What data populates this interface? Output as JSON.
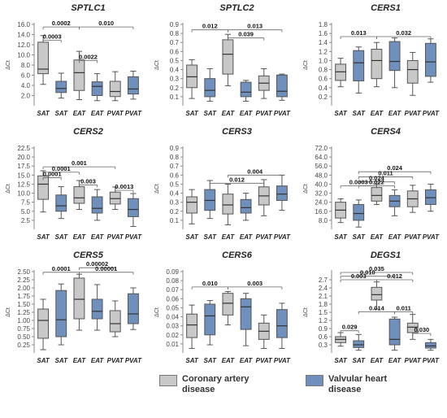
{
  "colors": {
    "coronary": "#c8c8c8",
    "valvular": "#6f8fbd",
    "stroke": "#555555",
    "text": "#222222"
  },
  "legend": {
    "coronary_label": "Coronary artery disease",
    "valvular_label": "Valvular heart disease"
  },
  "chart_data": [
    {
      "type": "box",
      "title": "SPTLC1",
      "ylabel": "ΔCt",
      "ylim": [
        0,
        16
      ],
      "yticks": [
        "2.0",
        "4.0",
        "6.0",
        "8.0",
        "10.0",
        "12.0",
        "14.0",
        "16.0"
      ],
      "ytick_values": [
        2,
        4,
        6,
        8,
        10,
        12,
        14,
        16
      ],
      "categories": [
        "SAT",
        "SAT",
        "EAT",
        "EAT",
        "PVAT",
        "PVAT"
      ],
      "groups": [
        "coronary",
        "valvular",
        "coronary",
        "valvular",
        "coronary",
        "valvular"
      ],
      "boxes": [
        {
          "min": 4.2,
          "q1": 6.3,
          "median": 7.2,
          "q3": 12.5,
          "max": 13.8
        },
        {
          "min": 1.5,
          "q1": 2.6,
          "median": 3.4,
          "q3": 4.8,
          "max": 6.4
        },
        {
          "min": 1.2,
          "q1": 3.0,
          "median": 6.5,
          "q3": 9.0,
          "max": 10.7
        },
        {
          "min": 1.0,
          "q1": 2.0,
          "median": 3.8,
          "q3": 4.7,
          "max": 6.3
        },
        {
          "min": 1.0,
          "q1": 1.8,
          "median": 2.8,
          "q3": 4.8,
          "max": 6.7
        },
        {
          "min": 1.3,
          "q1": 2.3,
          "median": 3.3,
          "q3": 5.7,
          "max": 6.8
        }
      ],
      "annotations": [
        {
          "label": "0.0002",
          "from": 0,
          "to": 2,
          "y": 15.5
        },
        {
          "label": "0.010",
          "from": 2,
          "to": 5,
          "y": 15.5
        },
        {
          "label": "0.0003",
          "from": 0,
          "to": 1,
          "y": 12.9
        },
        {
          "label": "0.0022",
          "from": 2,
          "to": 3,
          "y": 8.9
        }
      ]
    },
    {
      "type": "box",
      "title": "SPTLC2",
      "ylabel": "ΔCt",
      "ylim": [
        0,
        0.9
      ],
      "yticks": [
        "0.1",
        "0.2",
        "0.3",
        "0.4",
        "0.5",
        "0.6",
        "0.7",
        "0.8",
        "0.9"
      ],
      "ytick_values": [
        0.1,
        0.2,
        0.3,
        0.4,
        0.5,
        0.6,
        0.7,
        0.8,
        0.9
      ],
      "categories": [
        "SAT",
        "SAT",
        "EAT",
        "EAT",
        "PVAT",
        "PVAT"
      ],
      "groups": [
        "coronary",
        "valvular",
        "coronary",
        "valvular",
        "coronary",
        "valvular"
      ],
      "boxes": [
        {
          "min": 0.08,
          "q1": 0.2,
          "median": 0.32,
          "q3": 0.45,
          "max": 0.51
        },
        {
          "min": 0.05,
          "q1": 0.1,
          "median": 0.17,
          "q3": 0.3,
          "max": 0.41
        },
        {
          "min": 0.22,
          "q1": 0.35,
          "median": 0.57,
          "q3": 0.73,
          "max": 0.79
        },
        {
          "min": 0.05,
          "q1": 0.1,
          "median": 0.15,
          "q3": 0.26,
          "max": 0.28
        },
        {
          "min": 0.08,
          "q1": 0.17,
          "median": 0.25,
          "q3": 0.33,
          "max": 0.41
        },
        {
          "min": 0.06,
          "q1": 0.1,
          "median": 0.16,
          "q3": 0.34,
          "max": 0.35
        }
      ],
      "annotations": [
        {
          "label": "0.012",
          "from": 0,
          "to": 2,
          "y": 0.84
        },
        {
          "label": "0.013",
          "from": 2,
          "to": 5,
          "y": 0.84
        },
        {
          "label": "0.039",
          "from": 2,
          "to": 4,
          "y": 0.75
        }
      ]
    },
    {
      "type": "box",
      "title": "CERS1",
      "ylabel": "ΔCt",
      "ylim": [
        0,
        1.8
      ],
      "yticks": [
        "0.2",
        "0.4",
        "0.6",
        "0.8",
        "1.0",
        "1.2",
        "1.4",
        "1.6",
        "1.8"
      ],
      "ytick_values": [
        0.2,
        0.4,
        0.6,
        0.8,
        1.0,
        1.2,
        1.4,
        1.6,
        1.8
      ],
      "categories": [
        "SAT",
        "SAT",
        "EAT",
        "EAT",
        "PVAT",
        "PVAT"
      ],
      "groups": [
        "coronary",
        "valvular",
        "coronary",
        "valvular",
        "coronary",
        "valvular"
      ],
      "boxes": [
        {
          "min": 0.42,
          "q1": 0.56,
          "median": 0.75,
          "q3": 0.92,
          "max": 1.05
        },
        {
          "min": 0.28,
          "q1": 0.55,
          "median": 0.95,
          "q3": 1.22,
          "max": 1.3
        },
        {
          "min": 0.42,
          "q1": 0.6,
          "median": 1.0,
          "q3": 1.25,
          "max": 1.4
        },
        {
          "min": 0.4,
          "q1": 0.78,
          "median": 0.98,
          "q3": 1.42,
          "max": 1.5
        },
        {
          "min": 0.23,
          "q1": 0.5,
          "median": 0.8,
          "q3": 1.0,
          "max": 1.18
        },
        {
          "min": 0.52,
          "q1": 0.65,
          "median": 0.97,
          "q3": 1.38,
          "max": 1.48
        }
      ],
      "annotations": [
        {
          "label": "0.013",
          "from": 0,
          "to": 2,
          "y": 1.53
        },
        {
          "label": "0.032",
          "from": 2,
          "to": 5,
          "y": 1.53
        }
      ]
    },
    {
      "type": "box",
      "title": "CERS2",
      "ylabel": "ΔCt",
      "ylim": [
        0,
        22.5
      ],
      "yticks": [
        "2.5",
        "5.0",
        "7.5",
        "10.0",
        "12.5",
        "15.0",
        "17.5",
        "20.0",
        "22.5"
      ],
      "ytick_values": [
        2.5,
        5,
        7.5,
        10,
        12.5,
        15,
        17.5,
        20,
        22.5
      ],
      "categories": [
        "SAT",
        "SAT",
        "EAT",
        "EAT",
        "PVAT",
        "PVAT"
      ],
      "groups": [
        "coronary",
        "valvular",
        "coronary",
        "valvular",
        "coronary",
        "valvular"
      ],
      "boxes": [
        {
          "min": 4.8,
          "q1": 8.3,
          "median": 12.5,
          "q3": 14.8,
          "max": 16.2
        },
        {
          "min": 3.0,
          "q1": 5.0,
          "median": 6.5,
          "q3": 9.5,
          "max": 11.8
        },
        {
          "min": 5.5,
          "q1": 7.2,
          "median": 8.7,
          "q3": 11.8,
          "max": 13.5
        },
        {
          "min": 2.5,
          "q1": 4.5,
          "median": 5.8,
          "q3": 9.0,
          "max": 11.0
        },
        {
          "min": 5.5,
          "q1": 7.0,
          "median": 8.5,
          "q3": 10.3,
          "max": 11.7
        },
        {
          "min": 0.8,
          "q1": 3.5,
          "median": 5.5,
          "q3": 8.5,
          "max": 9.9
        }
      ],
      "annotations": [
        {
          "label": "0.001",
          "from": 0,
          "to": 4,
          "y": 17.3
        },
        {
          "label": "0.0001",
          "from": 0,
          "to": 2,
          "y": 15.8
        },
        {
          "label": "0.0001",
          "from": 0,
          "to": 1,
          "y": 14.3
        },
        {
          "label": "0.003",
          "from": 2,
          "to": 3,
          "y": 12.3
        },
        {
          "label": "0.0013",
          "from": 4,
          "to": 5,
          "y": 10.8
        }
      ]
    },
    {
      "type": "box",
      "title": "CERS3",
      "ylabel": "ΔCt",
      "ylim": [
        0,
        0.9
      ],
      "yticks": [
        "0.1",
        "0.2",
        "0.3",
        "0.4",
        "0.5",
        "0.6",
        "0.7",
        "0.8",
        "0.9"
      ],
      "ytick_values": [
        0.1,
        0.2,
        0.3,
        0.4,
        0.5,
        0.6,
        0.7,
        0.8,
        0.9
      ],
      "categories": [
        "SAT",
        "SAT",
        "EAT",
        "EAT",
        "PVAT",
        "PVAT"
      ],
      "groups": [
        "coronary",
        "valvular",
        "coronary",
        "valvular",
        "coronary",
        "valvular"
      ],
      "boxes": [
        {
          "min": 0.06,
          "q1": 0.18,
          "median": 0.3,
          "q3": 0.36,
          "max": 0.44
        },
        {
          "min": 0.12,
          "q1": 0.21,
          "median": 0.32,
          "q3": 0.44,
          "max": 0.54
        },
        {
          "min": 0.05,
          "q1": 0.17,
          "median": 0.27,
          "q3": 0.39,
          "max": 0.5
        },
        {
          "min": 0.1,
          "q1": 0.18,
          "median": 0.24,
          "q3": 0.33,
          "max": 0.4
        },
        {
          "min": 0.15,
          "q1": 0.27,
          "median": 0.37,
          "q3": 0.47,
          "max": 0.55
        },
        {
          "min": 0.21,
          "q1": 0.32,
          "median": 0.39,
          "q3": 0.48,
          "max": 0.6
        }
      ],
      "annotations": [
        {
          "label": "0.004",
          "from": 2,
          "to": 5,
          "y": 0.6
        },
        {
          "label": "0.012",
          "from": 1,
          "to": 4,
          "y": 0.51
        }
      ]
    },
    {
      "type": "box",
      "title": "CERS4",
      "ylabel": "ΔCt",
      "ylim": [
        0,
        72
      ],
      "yticks": [
        "8.0",
        "16.0",
        "24.0",
        "32.0",
        "40.0",
        "48.0",
        "56.0",
        "64.0",
        "72.0"
      ],
      "ytick_values": [
        8,
        16,
        24,
        32,
        40,
        48,
        56,
        64,
        72
      ],
      "categories": [
        "SAT",
        "SAT",
        "EAT",
        "EAT",
        "PVAT",
        "PVAT"
      ],
      "groups": [
        "coronary",
        "valvular",
        "coronary",
        "valvular",
        "coronary",
        "valvular"
      ],
      "boxes": [
        {
          "min": 6.0,
          "q1": 10.0,
          "median": 17.0,
          "q3": 24.0,
          "max": 27.0
        },
        {
          "min": 2.0,
          "q1": 8.0,
          "median": 14.0,
          "q3": 22.0,
          "max": 26.0
        },
        {
          "min": 22.0,
          "q1": 25.0,
          "median": 30.0,
          "q3": 37.0,
          "max": 40.0
        },
        {
          "min": 12.0,
          "q1": 20.0,
          "median": 25.0,
          "q3": 30.0,
          "max": 35.0
        },
        {
          "min": 15.0,
          "q1": 20.0,
          "median": 27.0,
          "q3": 34.0,
          "max": 39.0
        },
        {
          "min": 16.0,
          "q1": 22.0,
          "median": 28.0,
          "q3": 35.0,
          "max": 40.0
        }
      ],
      "annotations": [
        {
          "label": "0.024",
          "from": 1,
          "to": 5,
          "y": 51.0
        },
        {
          "label": "0.011",
          "from": 1,
          "to": 4,
          "y": 46.5
        },
        {
          "label": "0.024",
          "from": 1,
          "to": 3,
          "y": 42.0
        },
        {
          "label": "0.0003",
          "from": 0,
          "to": 2,
          "y": 38.5
        },
        {
          "label": "0.022",
          "from": 1,
          "to": 3,
          "y": 38.5
        }
      ]
    },
    {
      "type": "box",
      "title": "CERS5",
      "ylabel": "ΔCt",
      "ylim": [
        0,
        2.5
      ],
      "yticks": [
        "0.25",
        "0.50",
        "0.75",
        "1.00",
        "1.25",
        "1.50",
        "1.75",
        "2.00",
        "2.25",
        "2.50"
      ],
      "ytick_values": [
        0.25,
        0.5,
        0.75,
        1.0,
        1.25,
        1.5,
        1.75,
        2.0,
        2.25,
        2.5
      ],
      "categories": [
        "SAT",
        "SAT",
        "EAT",
        "EAT",
        "PVAT",
        "PVAT"
      ],
      "groups": [
        "coronary",
        "valvular",
        "coronary",
        "valvular",
        "coronary",
        "valvular"
      ],
      "boxes": [
        {
          "min": 0.1,
          "q1": 0.45,
          "median": 1.0,
          "q3": 1.35,
          "max": 1.65
        },
        {
          "min": 0.25,
          "q1": 0.5,
          "median": 1.02,
          "q3": 1.92,
          "max": 2.12
        },
        {
          "min": 0.7,
          "q1": 1.05,
          "median": 1.65,
          "q3": 2.3,
          "max": 2.42
        },
        {
          "min": 0.7,
          "q1": 1.05,
          "median": 1.28,
          "q3": 1.65,
          "max": 2.1
        },
        {
          "min": 0.5,
          "q1": 0.65,
          "median": 0.9,
          "q3": 1.3,
          "max": 1.6
        },
        {
          "min": 0.72,
          "q1": 0.9,
          "median": 1.2,
          "q3": 1.82,
          "max": 2.0
        }
      ],
      "annotations": [
        {
          "label": "0.0001",
          "from": 0,
          "to": 2,
          "y": 2.48
        },
        {
          "label": "0.00002",
          "from": 2,
          "to": 4,
          "y": 2.62
        },
        {
          "label": "0.00001",
          "from": 2,
          "to": 5,
          "y": 2.48
        }
      ]
    },
    {
      "type": "box",
      "title": "CERS6",
      "ylabel": "ΔCt",
      "ylim": [
        0,
        0.09
      ],
      "yticks": [
        "0.01",
        "0.02",
        "0.03",
        "0.04",
        "0.05",
        "0.06",
        "0.07",
        "0.08",
        "0.09"
      ],
      "ytick_values": [
        0.01,
        0.02,
        0.03,
        0.04,
        0.05,
        0.06,
        0.07,
        0.08,
        0.09
      ],
      "categories": [
        "SAT",
        "SAT",
        "EAT",
        "EAT",
        "PVAT",
        "PVAT"
      ],
      "groups": [
        "coronary",
        "valvular",
        "coronary",
        "valvular",
        "coronary",
        "valvular"
      ],
      "boxes": [
        {
          "min": 0.005,
          "q1": 0.017,
          "median": 0.031,
          "q3": 0.043,
          "max": 0.053
        },
        {
          "min": 0.009,
          "q1": 0.02,
          "median": 0.041,
          "q3": 0.054,
          "max": 0.058
        },
        {
          "min": 0.031,
          "q1": 0.042,
          "median": 0.055,
          "q3": 0.066,
          "max": 0.068
        },
        {
          "min": 0.008,
          "q1": 0.026,
          "median": 0.051,
          "q3": 0.06,
          "max": 0.066
        },
        {
          "min": 0.005,
          "q1": 0.015,
          "median": 0.024,
          "q3": 0.033,
          "max": 0.042
        },
        {
          "min": 0.005,
          "q1": 0.017,
          "median": 0.03,
          "q3": 0.048,
          "max": 0.055
        }
      ],
      "annotations": [
        {
          "label": "0.010",
          "from": 0,
          "to": 2,
          "y": 0.073
        },
        {
          "label": "0.003",
          "from": 2,
          "to": 5,
          "y": 0.073
        }
      ]
    },
    {
      "type": "box",
      "title": "DEGS1",
      "ylabel": "ΔCt",
      "ylim": [
        0,
        3.0
      ],
      "yticks": [
        "0.3",
        "0.6",
        "0.9",
        "1.2",
        "1.5",
        "1.8",
        "2.1",
        "2.4",
        "2.7"
      ],
      "ytick_values": [
        0.3,
        0.6,
        0.9,
        1.2,
        1.5,
        1.8,
        2.1,
        2.4,
        2.7
      ],
      "categories": [
        "SAT",
        "SAT",
        "EAT",
        "EAT",
        "PVAT",
        "PVAT"
      ],
      "groups": [
        "coronary",
        "valvular",
        "coronary",
        "valvular",
        "coronary",
        "valvular"
      ],
      "boxes": [
        {
          "min": 0.25,
          "q1": 0.38,
          "median": 0.5,
          "q3": 0.6,
          "max": 0.75
        },
        {
          "min": 0.1,
          "q1": 0.2,
          "median": 0.3,
          "q3": 0.45,
          "max": 0.68
        },
        {
          "min": 1.62,
          "q1": 1.95,
          "median": 2.15,
          "q3": 2.42,
          "max": 2.62
        },
        {
          "min": 0.1,
          "q1": 0.3,
          "median": 0.5,
          "q3": 1.25,
          "max": 1.32
        },
        {
          "min": 0.5,
          "q1": 0.75,
          "median": 0.95,
          "q3": 1.1,
          "max": 1.42
        },
        {
          "min": 0.1,
          "q1": 0.18,
          "median": 0.26,
          "q3": 0.38,
          "max": 0.5
        }
      ],
      "annotations": [
        {
          "label": "0.035",
          "from": 0,
          "to": 4,
          "y": 2.97
        },
        {
          "label": "0.010",
          "from": 0,
          "to": 3,
          "y": 2.83
        },
        {
          "label": "0.003",
          "from": 0,
          "to": 2,
          "y": 2.7
        },
        {
          "label": "0.012",
          "from": 2,
          "to": 4,
          "y": 2.7
        },
        {
          "label": "0.014",
          "from": 1,
          "to": 3,
          "y": 1.52
        },
        {
          "label": "0.011",
          "from": 3,
          "to": 4,
          "y": 1.52
        },
        {
          "label": "0.030",
          "from": 4,
          "to": 5,
          "y": 0.72
        },
        {
          "label": "0.029",
          "from": 0,
          "to": 1,
          "y": 0.82
        }
      ]
    }
  ]
}
